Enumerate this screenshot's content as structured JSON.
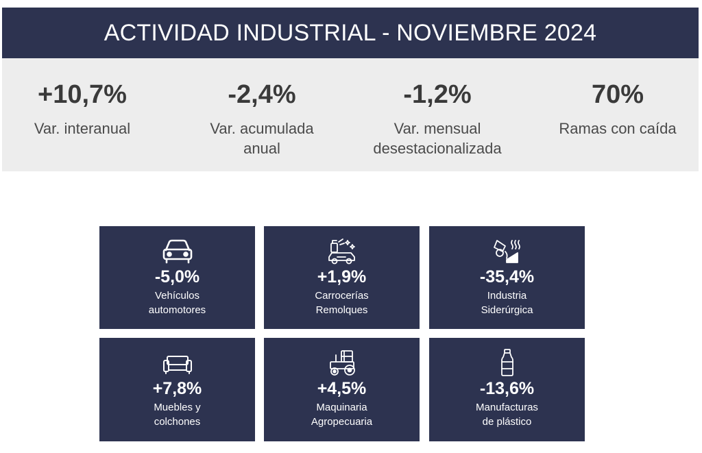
{
  "header": {
    "title": "ACTIVIDAD INDUSTRIAL - NOVIEMBRE 2024"
  },
  "stats": [
    {
      "value": "+10,7%",
      "label_line1": "Var. interanual",
      "label_line2": ""
    },
    {
      "value": "-2,4%",
      "label_line1": "Var. acumulada",
      "label_line2": "anual"
    },
    {
      "value": "-1,2%",
      "label_line1": "Var. mensual",
      "label_line2": "desestacionalizada"
    },
    {
      "value": "70%",
      "label_line1": "Ramas con caída",
      "label_line2": ""
    }
  ],
  "cards": [
    {
      "icon": "car-icon",
      "value": "-5,0%",
      "label_line1": "Vehículos",
      "label_line2": "automotores"
    },
    {
      "icon": "car-wash-icon",
      "value": "+1,9%",
      "label_line1": "Carrocerías",
      "label_line2": "Remolques"
    },
    {
      "icon": "steel-industry-icon",
      "value": "-35,4%",
      "label_line1": "Industria",
      "label_line2": "Siderúrgica"
    },
    {
      "icon": "sofa-icon",
      "value": "+7,8%",
      "label_line1": "Muebles y",
      "label_line2": "colchones"
    },
    {
      "icon": "tractor-icon",
      "value": "+4,5%",
      "label_line1": "Maquinaria",
      "label_line2": "Agropecuaria"
    },
    {
      "icon": "plastic-bottle-icon",
      "value": "-13,6%",
      "label_line1": "Manufacturas",
      "label_line2": "de plástico"
    }
  ],
  "colors": {
    "header_bg": "#2d3350",
    "stats_bg": "#ededed",
    "card_bg": "#2d3350",
    "text_light": "#ffffff"
  }
}
